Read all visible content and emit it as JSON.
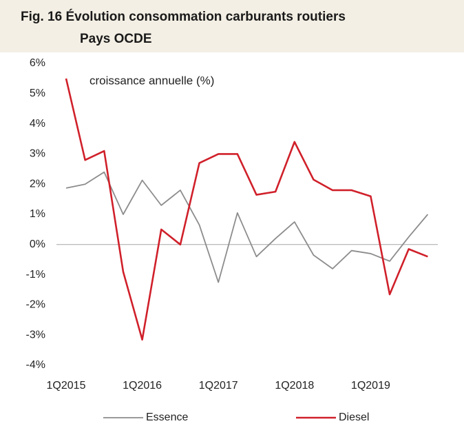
{
  "chart_data": {
    "type": "line",
    "title": "Fig. 16 Évolution consommation carburants routiers",
    "subtitle": "Pays OCDE",
    "annotation": "croissance annuelle (%)",
    "categories": [
      "1Q2015",
      null,
      null,
      null,
      "1Q2016",
      null,
      null,
      null,
      "1Q2017",
      null,
      null,
      null,
      "1Q2018",
      null,
      null,
      null,
      "1Q2019",
      null,
      null,
      null
    ],
    "series": [
      {
        "name": "Essence",
        "color": "#8c8c8c",
        "values": [
          1.87,
          2.0,
          2.4,
          1.0,
          2.13,
          1.3,
          1.8,
          0.65,
          -1.25,
          1.05,
          -0.4,
          0.2,
          0.75,
          -0.35,
          -0.8,
          -0.2,
          -0.3,
          -0.55,
          0.25,
          1.0
        ]
      },
      {
        "name": "Diesel",
        "color": "#d0202a",
        "values": [
          5.5,
          2.8,
          3.1,
          -0.9,
          -3.15,
          0.5,
          0.0,
          2.7,
          3.0,
          3.0,
          1.65,
          1.75,
          3.4,
          2.15,
          1.8,
          1.8,
          1.6,
          -1.65,
          -0.15,
          -0.4
        ]
      }
    ],
    "ylim": [
      -4,
      6
    ],
    "yticks": [
      {
        "value": -4,
        "label": "-4%"
      },
      {
        "value": -3,
        "label": "-3%"
      },
      {
        "value": -2,
        "label": "-2%"
      },
      {
        "value": -1,
        "label": "-1%"
      },
      {
        "value": 0,
        "label": "0%"
      },
      {
        "value": 1,
        "label": "1%"
      },
      {
        "value": 2,
        "label": "2%"
      },
      {
        "value": 3,
        "label": "3%"
      },
      {
        "value": 4,
        "label": "4%"
      },
      {
        "value": 5,
        "label": "5%"
      },
      {
        "value": 6,
        "label": "6%"
      }
    ],
    "legend": "bottom"
  }
}
